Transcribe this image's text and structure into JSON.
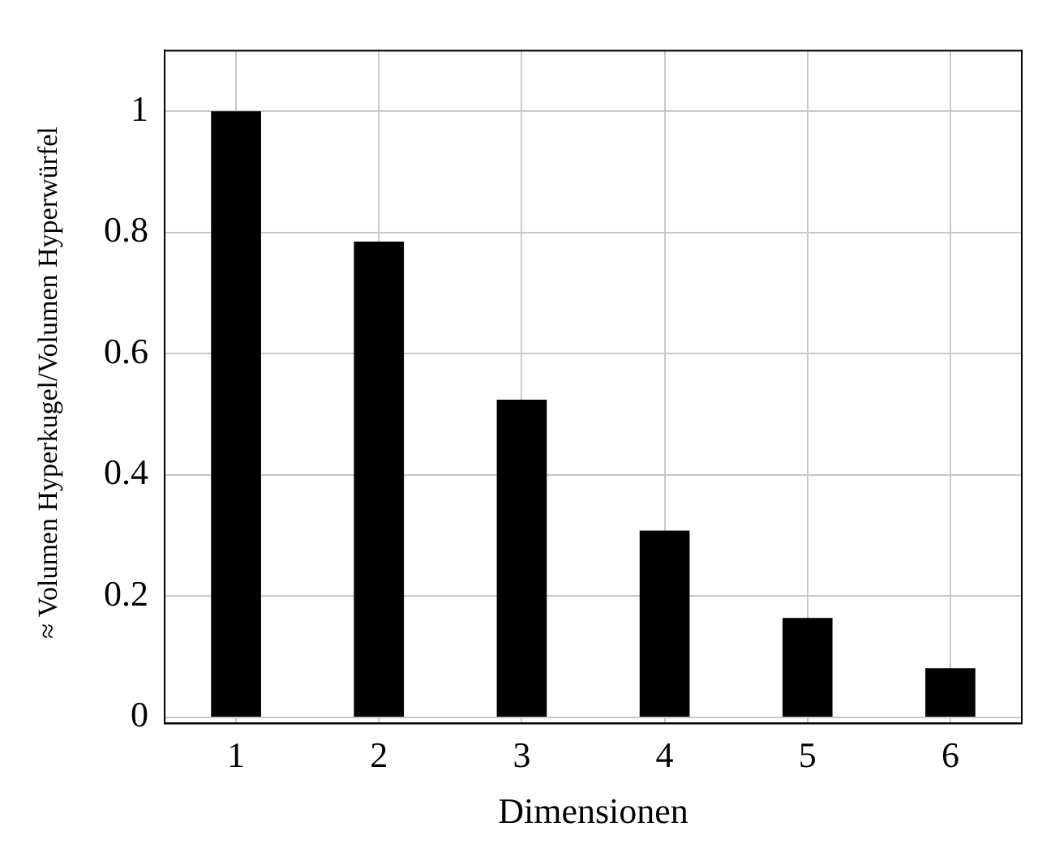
{
  "chart_data": {
    "type": "bar",
    "xlabel": "Dimensionen",
    "ylabel": "≈ Volumen Hyperkugel/Volumen Hyperwürfel",
    "categories": [
      "1",
      "2",
      "3",
      "4",
      "5",
      "6"
    ],
    "values": [
      1,
      0.785,
      0.524,
      0.308,
      0.164,
      0.081
    ],
    "color": "#000000",
    "ylim": [
      -0.01,
      1.1
    ],
    "yticks": [
      0,
      0.2,
      0.4,
      0.6,
      0.8,
      1
    ],
    "grid": true,
    "legend": false
  }
}
